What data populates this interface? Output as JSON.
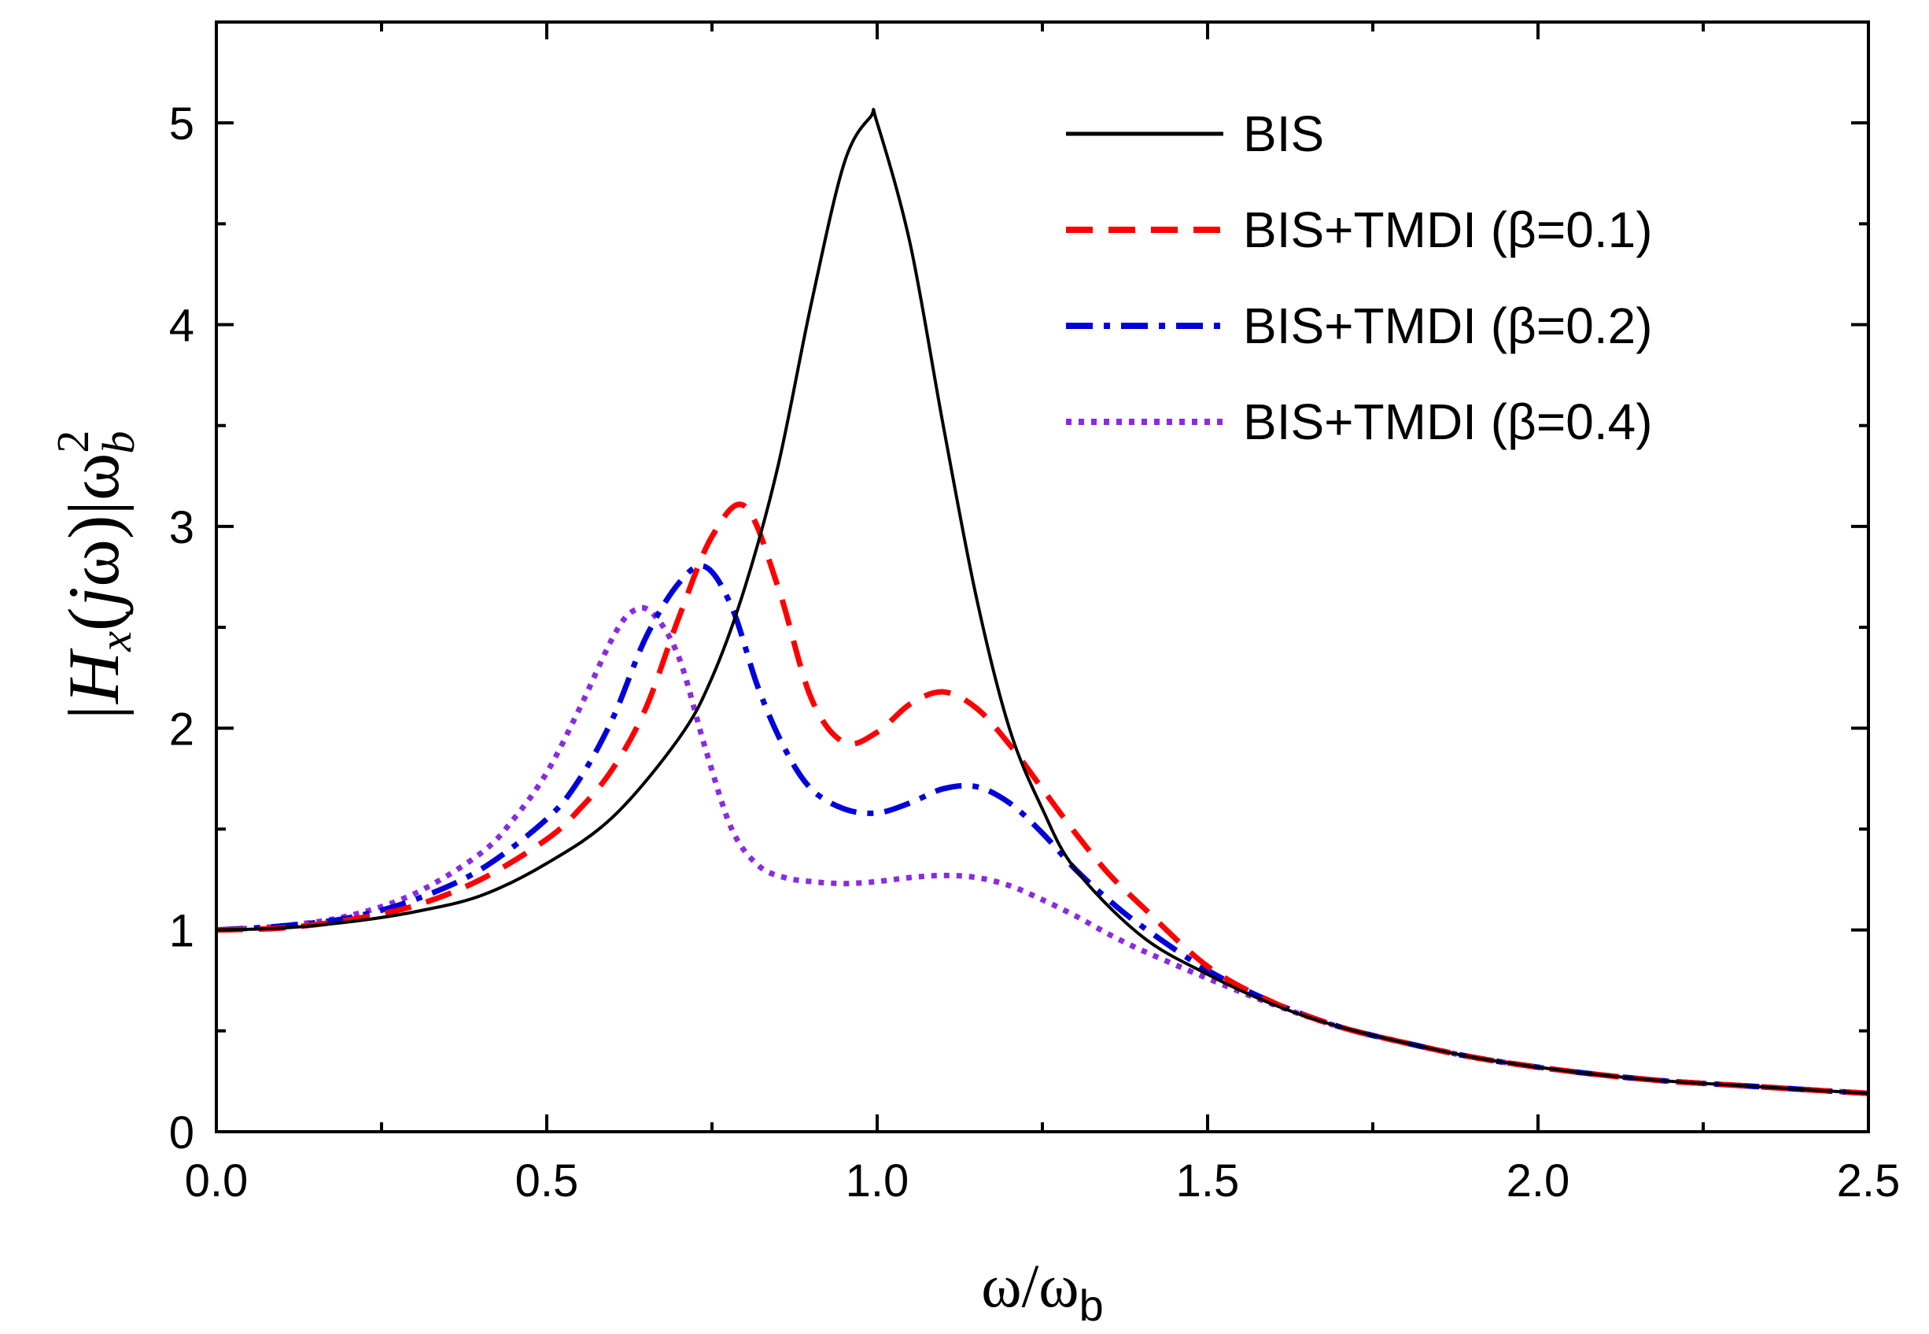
{
  "chart_data": {
    "type": "line",
    "xlabel": "ω/ω",
    "xlabel_sub": "b",
    "ylabel": "|H",
    "ylabel_sub": "x",
    "ylabel_mid": "(",
    "ylabel_j": "j",
    "ylabel_end": "ω)|ω",
    "ylabel_sup": "2",
    "ylabel_sub2": "b",
    "xlim": [
      0.0,
      2.5
    ],
    "ylim": [
      0,
      5.5
    ],
    "xticks": [
      "0.0",
      "0.5",
      "1.0",
      "1.5",
      "2.0",
      "2.5"
    ],
    "yticks": [
      "0",
      "1",
      "2",
      "3",
      "4",
      "5"
    ],
    "legend_position": "top-right",
    "series": [
      {
        "name": "BIS",
        "color": "#000000",
        "dash": "solid",
        "x": [
          0.0,
          0.1,
          0.2,
          0.3,
          0.4,
          0.5,
          0.6,
          0.7,
          0.75,
          0.8,
          0.85,
          0.9,
          0.95,
          0.99,
          1.0,
          1.05,
          1.1,
          1.15,
          1.2,
          1.25,
          1.3,
          1.4,
          1.5,
          1.6,
          1.7,
          1.8,
          1.9,
          2.0,
          2.1,
          2.2,
          2.3,
          2.4,
          2.5
        ],
        "y": [
          1.0,
          1.01,
          1.04,
          1.09,
          1.17,
          1.33,
          1.56,
          1.95,
          2.25,
          2.7,
          3.3,
          4.1,
          4.8,
          5.03,
          5.0,
          4.4,
          3.5,
          2.65,
          2.0,
          1.6,
          1.3,
          0.97,
          0.78,
          0.63,
          0.52,
          0.44,
          0.37,
          0.32,
          0.28,
          0.25,
          0.23,
          0.21,
          0.19
        ]
      },
      {
        "name": "BIS+TMDI (β=0.1)",
        "color": "#ff0000",
        "dash": "dashed",
        "x": [
          0.0,
          0.1,
          0.2,
          0.3,
          0.4,
          0.5,
          0.55,
          0.6,
          0.65,
          0.7,
          0.75,
          0.8,
          0.85,
          0.9,
          0.95,
          1.0,
          1.05,
          1.1,
          1.15,
          1.2,
          1.25,
          1.3,
          1.35,
          1.4,
          1.5,
          1.6,
          1.7,
          1.8,
          1.9,
          2.0,
          2.1,
          2.2,
          2.3,
          2.4,
          2.5
        ],
        "y": [
          1.0,
          1.01,
          1.05,
          1.12,
          1.25,
          1.45,
          1.6,
          1.8,
          2.1,
          2.55,
          2.95,
          3.1,
          2.7,
          2.15,
          1.93,
          1.98,
          2.12,
          2.18,
          2.1,
          1.92,
          1.7,
          1.48,
          1.28,
          1.12,
          0.82,
          0.64,
          0.52,
          0.44,
          0.37,
          0.32,
          0.28,
          0.25,
          0.23,
          0.21,
          0.19
        ]
      },
      {
        "name": "BIS+TMDI (β=0.2)",
        "color": "#0000dd",
        "dash": "dashdot",
        "x": [
          0.0,
          0.1,
          0.2,
          0.3,
          0.4,
          0.5,
          0.55,
          0.6,
          0.65,
          0.7,
          0.74,
          0.78,
          0.82,
          0.86,
          0.9,
          0.95,
          1.0,
          1.05,
          1.1,
          1.15,
          1.2,
          1.25,
          1.3,
          1.35,
          1.4,
          1.5,
          1.6,
          1.7,
          1.8,
          1.9,
          2.0,
          2.1,
          2.2,
          2.3,
          2.4,
          2.5
        ],
        "y": [
          1.0,
          1.02,
          1.06,
          1.15,
          1.3,
          1.55,
          1.75,
          2.05,
          2.45,
          2.72,
          2.8,
          2.6,
          2.2,
          1.9,
          1.7,
          1.6,
          1.58,
          1.63,
          1.7,
          1.71,
          1.63,
          1.48,
          1.3,
          1.15,
          1.02,
          0.8,
          0.64,
          0.52,
          0.44,
          0.37,
          0.32,
          0.28,
          0.25,
          0.23,
          0.21,
          0.19
        ]
      },
      {
        "name": "BIS+TMDI (β=0.4)",
        "color": "#8a2be2",
        "dash": "dotted",
        "x": [
          0.0,
          0.1,
          0.2,
          0.3,
          0.4,
          0.45,
          0.5,
          0.55,
          0.6,
          0.63,
          0.66,
          0.7,
          0.74,
          0.78,
          0.82,
          0.86,
          0.9,
          0.95,
          1.0,
          1.05,
          1.1,
          1.15,
          1.2,
          1.25,
          1.3,
          1.35,
          1.4,
          1.5,
          1.6,
          1.7,
          1.8,
          1.9,
          2.0,
          2.1,
          2.2,
          2.3,
          2.4,
          2.5
        ],
        "y": [
          1.0,
          1.02,
          1.07,
          1.18,
          1.38,
          1.55,
          1.78,
          2.1,
          2.45,
          2.58,
          2.57,
          2.35,
          1.9,
          1.5,
          1.32,
          1.26,
          1.24,
          1.23,
          1.24,
          1.26,
          1.27,
          1.26,
          1.22,
          1.15,
          1.07,
          0.98,
          0.9,
          0.76,
          0.63,
          0.52,
          0.44,
          0.37,
          0.32,
          0.28,
          0.25,
          0.23,
          0.21,
          0.19
        ]
      }
    ]
  }
}
